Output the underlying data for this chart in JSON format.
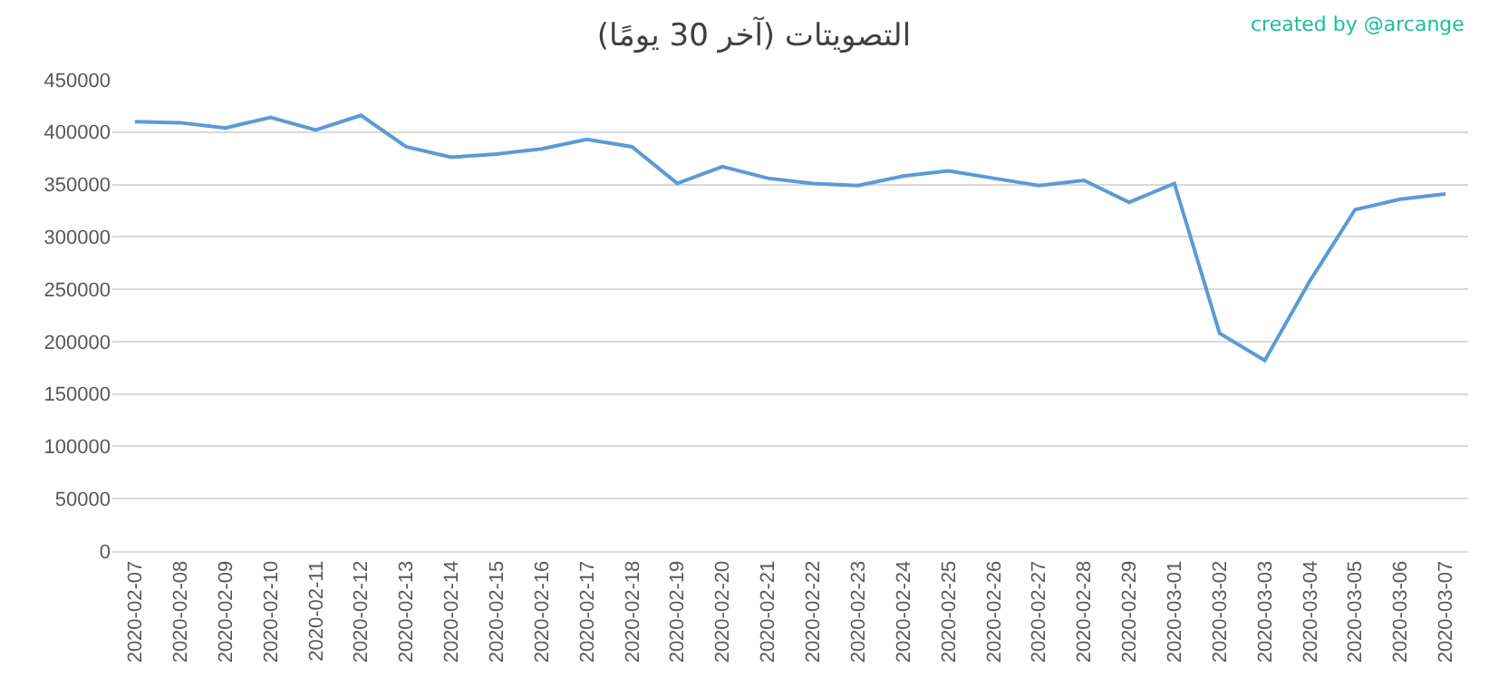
{
  "chart_data": {
    "type": "line",
    "title": "التصويتات (آخر 30 يومًا)",
    "annotations": [
      "created by @arcange"
    ],
    "categories": [
      "2020-02-07",
      "2020-02-08",
      "2020-02-09",
      "2020-02-10",
      "2020-02-11",
      "2020-02-12",
      "2020-02-13",
      "2020-02-14",
      "2020-02-15",
      "2020-02-16",
      "2020-02-17",
      "2020-02-18",
      "2020-02-19",
      "2020-02-20",
      "2020-02-21",
      "2020-02-22",
      "2020-02-23",
      "2020-02-24",
      "2020-02-25",
      "2020-02-26",
      "2020-02-27",
      "2020-02-28",
      "2020-02-29",
      "2020-03-01",
      "2020-03-02",
      "2020-03-03",
      "2020-03-04",
      "2020-03-05",
      "2020-03-06",
      "2020-03-07"
    ],
    "series": [
      {
        "color": "#5b9bd5",
        "values": [
          410000,
          409000,
          404000,
          414000,
          402000,
          416000,
          386000,
          376000,
          379000,
          384000,
          393000,
          386000,
          351000,
          367000,
          356000,
          351000,
          349000,
          358000,
          363000,
          356000,
          349000,
          354000,
          333000,
          351000,
          208000,
          182000,
          258000,
          326000,
          336000,
          341000
        ]
      }
    ],
    "ylim": [
      0,
      450000
    ],
    "yticks": [
      0,
      50000,
      100000,
      150000,
      200000,
      250000,
      300000,
      350000,
      400000,
      450000
    ],
    "grid": "y",
    "marker": "none",
    "line_style": "solid"
  }
}
